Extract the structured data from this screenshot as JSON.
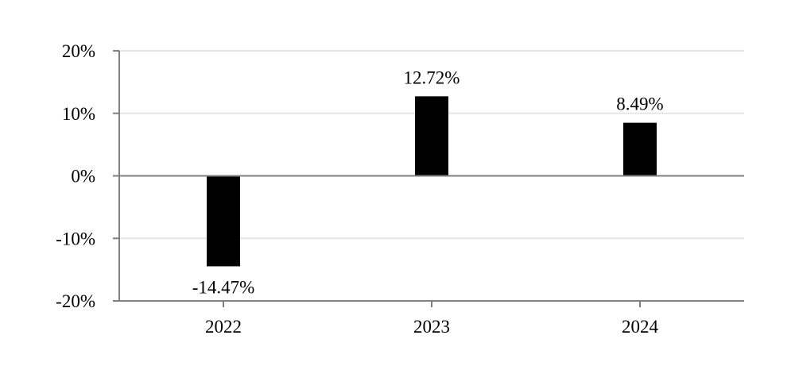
{
  "chart_data": {
    "type": "bar",
    "title": "",
    "xlabel": "",
    "ylabel": "",
    "categories": [
      "2022",
      "2023",
      "2024"
    ],
    "values": [
      -14.47,
      12.72,
      8.49
    ],
    "value_labels": [
      "-14.47%",
      "12.72%",
      "8.49%"
    ],
    "ylim": [
      -20,
      20
    ],
    "yticks": [
      -20,
      -10,
      0,
      10,
      20
    ],
    "ytick_labels": [
      "-20%",
      "-10%",
      "0%",
      "10%",
      "20%"
    ],
    "grid": true,
    "legend": "none",
    "colors": {
      "bar": "#000000",
      "grid": "#e6e6e6",
      "axis": "#7f7f7f",
      "zero_line": "#7f7f7f"
    }
  }
}
